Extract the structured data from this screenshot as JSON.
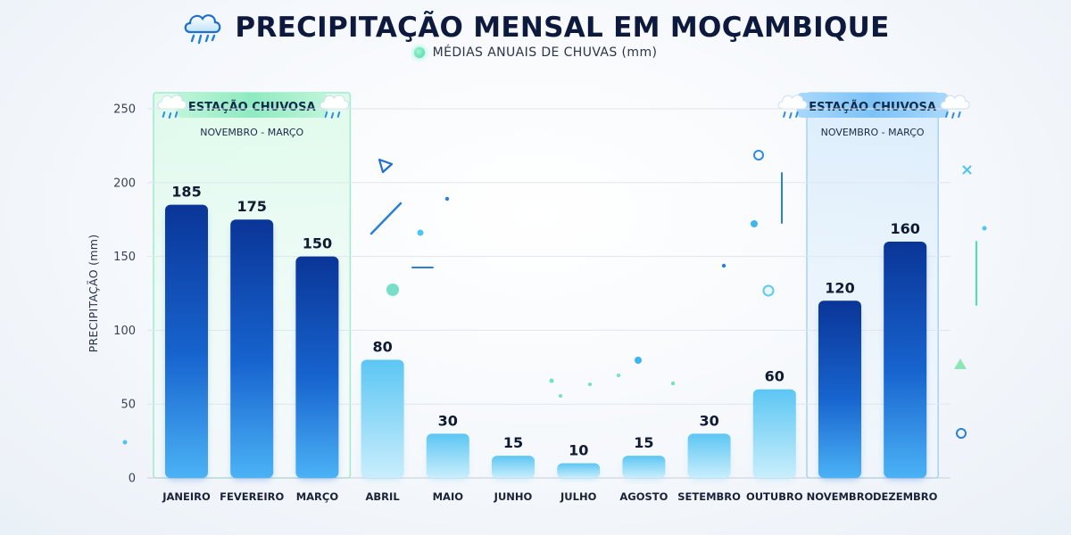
{
  "title": "PRECIPITAÇÃO MENSAL EM MOÇAMBIQUE",
  "subtitle": "MÉDIAS ANUAIS DE CHUVAS (mm)",
  "title_icon": "rain-cloud-icon",
  "colors": {
    "title": "#0d1a3d",
    "bar_wet_top": "#0a3aa0",
    "bar_wet_bottom": "#3aa0f0",
    "bar_dry_top": "#6fd0f5",
    "bar_dry_bottom": "#c4ecfb",
    "season_left": "#7fe8b8",
    "season_right": "#6fb8f5"
  },
  "seasons": [
    {
      "label": "ESTAÇÃO CHUVOSA",
      "months": "NOVEMBRO - MARÇO",
      "start_index": 0,
      "end_index": 2,
      "color": "green"
    },
    {
      "label": "ESTAÇÃO CHUVOSA",
      "months": "NOVEMBRO - MARÇO",
      "start_index": 10,
      "end_index": 11,
      "color": "blue"
    }
  ],
  "chart_data": {
    "type": "bar",
    "title": "PRECIPITAÇÃO MENSAL EM MOÇAMBIQUE",
    "subtitle": "MÉDIAS ANUAIS DE CHUVAS (mm)",
    "xlabel": "",
    "ylabel": "PRECIPITAÇÃO (mm)",
    "ylim": [
      0,
      250
    ],
    "yticks": [
      0,
      50,
      100,
      150,
      200,
      250
    ],
    "grid": true,
    "categories": [
      "JANEIRO",
      "FEVEREIRO",
      "MARÇO",
      "ABRIL",
      "MAIO",
      "JUNHO",
      "JULHO",
      "AGOSTO",
      "SETEMBRO",
      "OUTUBRO",
      "NOVEMBRO",
      "DEZEMBRO"
    ],
    "values": [
      185,
      175,
      150,
      80,
      30,
      15,
      10,
      15,
      30,
      60,
      120,
      160
    ],
    "wet_season": [
      true,
      true,
      true,
      false,
      false,
      false,
      false,
      false,
      false,
      false,
      true,
      true
    ]
  }
}
